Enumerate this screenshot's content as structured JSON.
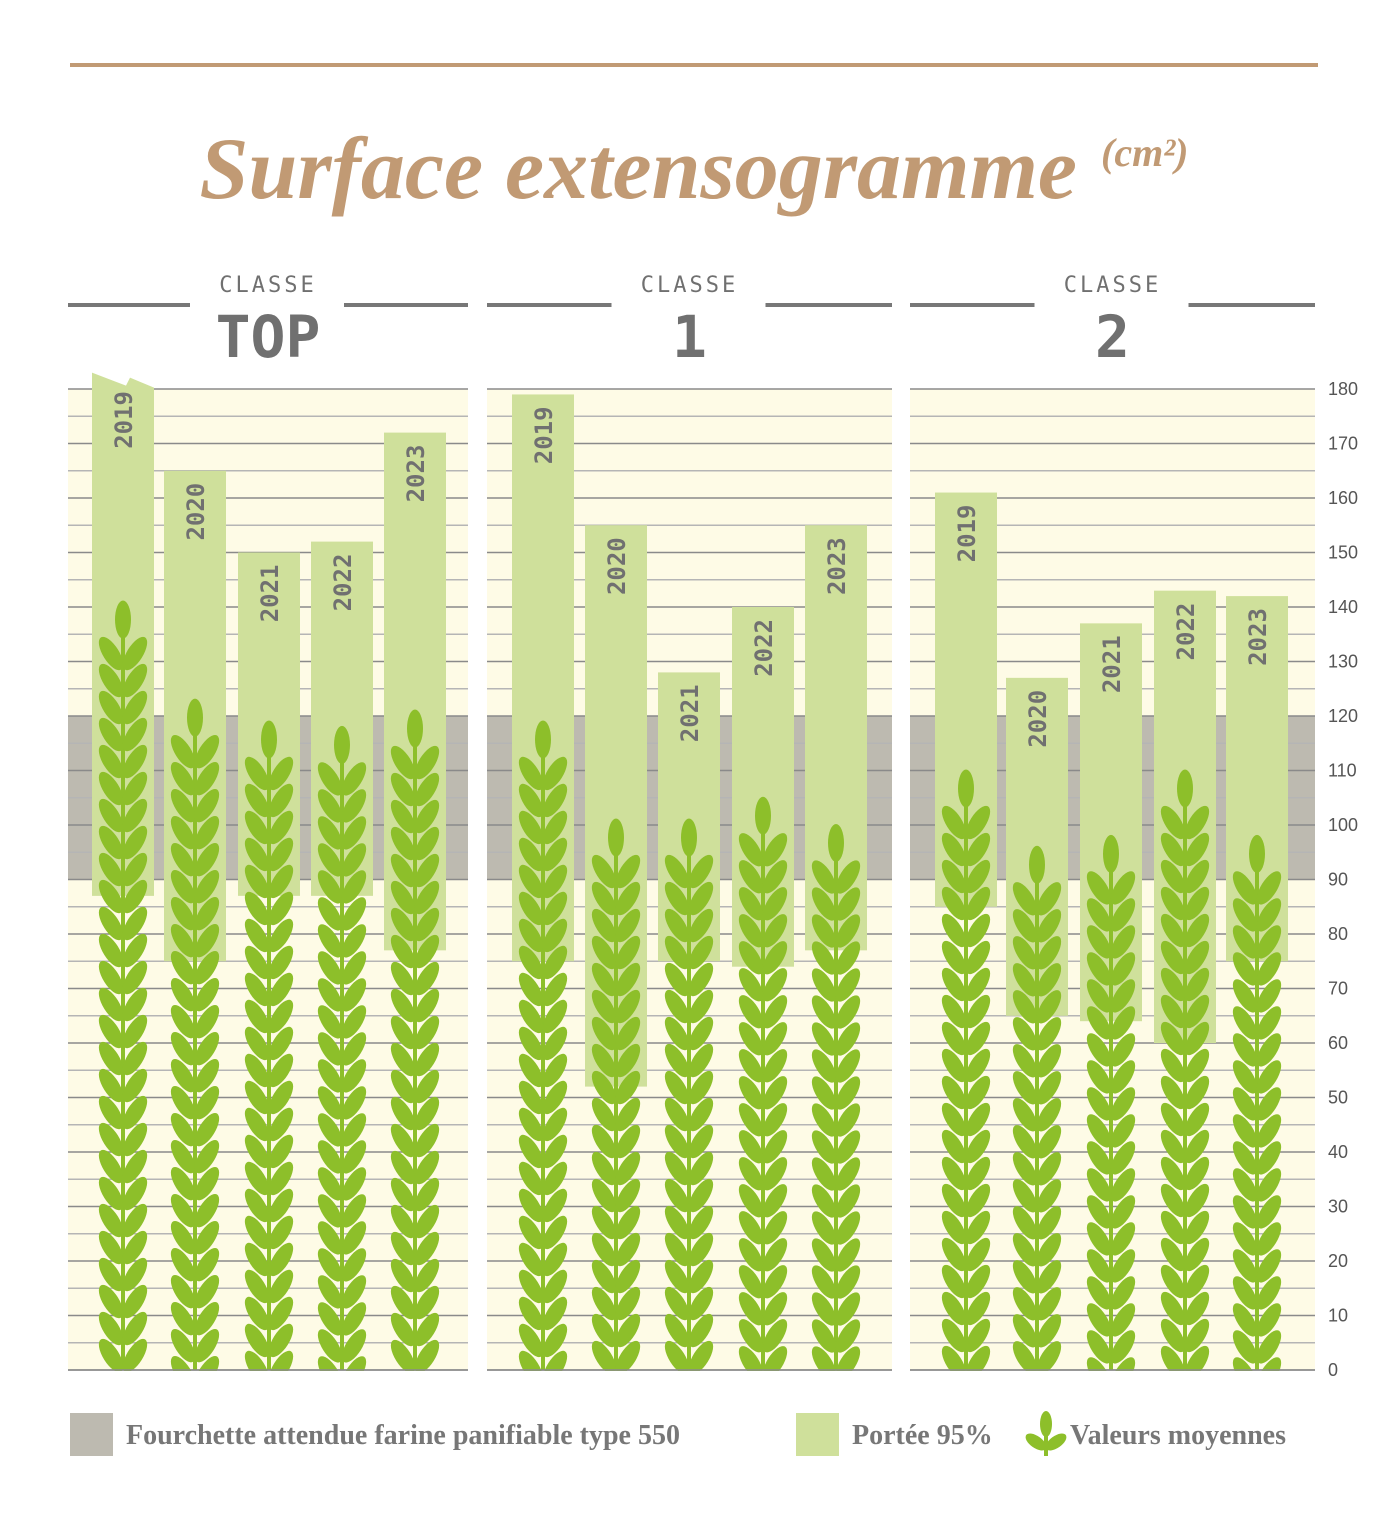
{
  "chart_data": {
    "type": "bar",
    "title": "Surface extensogramme",
    "title_unit": "(cm²)",
    "ylim": [
      0,
      180
    ],
    "yticks": [
      0,
      10,
      20,
      30,
      40,
      50,
      60,
      70,
      80,
      90,
      100,
      110,
      120,
      130,
      140,
      150,
      160,
      170,
      180
    ],
    "grid": true,
    "expected_range": [
      90,
      120
    ],
    "panels": [
      {
        "label_top": "CLASSE",
        "label": "TOP",
        "categories": [
          "2019",
          "2020",
          "2021",
          "2022",
          "2023"
        ],
        "range_low": [
          87,
          75,
          87,
          87,
          77
        ],
        "range_high": [
          183,
          165,
          150,
          152,
          172
        ],
        "mean": [
          141,
          123,
          119,
          118,
          121
        ]
      },
      {
        "label_top": "CLASSE",
        "label": "1",
        "categories": [
          "2019",
          "2020",
          "2021",
          "2022",
          "2023"
        ],
        "range_low": [
          75,
          52,
          75,
          74,
          77
        ],
        "range_high": [
          179,
          155,
          128,
          140,
          155
        ],
        "mean": [
          119,
          101,
          101,
          105,
          100
        ]
      },
      {
        "label_top": "CLASSE",
        "label": "2",
        "categories": [
          "2019",
          "2020",
          "2021",
          "2022",
          "2023"
        ],
        "range_low": [
          85,
          65,
          64,
          60,
          75
        ],
        "range_high": [
          161,
          127,
          137,
          143,
          142
        ],
        "mean": [
          110,
          96,
          98,
          110,
          98
        ]
      }
    ],
    "legend": [
      {
        "label": "Fourchette attendue farine panifiable type 550",
        "color": "#bdbab0"
      },
      {
        "label": "Portée 95%",
        "color": "#cfe09b"
      },
      {
        "label": "Valeurs moyennes",
        "color": "#8dbf2a",
        "icon": "wheat-icon"
      }
    ],
    "legend_placement": "bottom"
  },
  "colors": {
    "title": "#c19a74",
    "background": "#fefbe6",
    "band": "#bdbab0",
    "bar": "#cfe09b",
    "wheat": "#8dbf2a"
  }
}
